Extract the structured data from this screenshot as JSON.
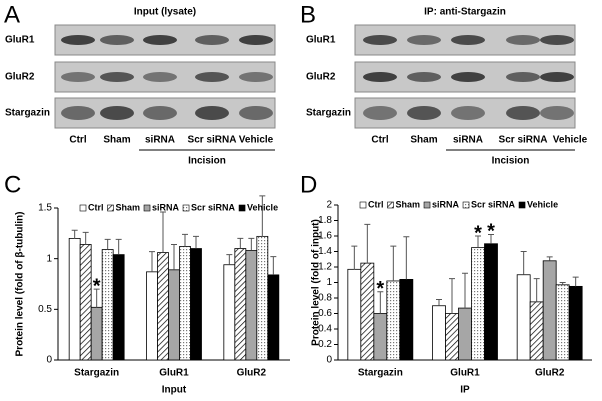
{
  "blots": [
    {
      "panel": "A",
      "title": "Input (lysate)",
      "rows": [
        "GluR1",
        "GluR2",
        "Stargazin"
      ],
      "lanes": [
        "Ctrl",
        "Sham",
        "siRNA",
        "Scr siRNA",
        "Vehicle"
      ],
      "group": "Incision"
    },
    {
      "panel": "B",
      "title": "IP: anti-Stargazin",
      "rows": [
        "GluR1",
        "GluR2",
        "Stargazin"
      ],
      "lanes": [
        "Ctrl",
        "Sham",
        "siRNA",
        "Scr siRNA",
        "Vehicle"
      ],
      "group": "Incision"
    }
  ],
  "chart_data": [
    {
      "type": "bar",
      "panel": "C",
      "xlabel": "Input",
      "ylabel": "Protein level (fold of  β-tubulin)",
      "categories": [
        "Stargazin",
        "GluR1",
        "GluR2"
      ],
      "series": [
        {
          "name": "Ctrl",
          "color": "#ffffff",
          "values": [
            1.2,
            0.87,
            0.94
          ],
          "errors": [
            0.08,
            0.2,
            0.1
          ]
        },
        {
          "name": "Sham",
          "color": "#ffffff",
          "pattern": "hatch",
          "values": [
            1.14,
            1.06,
            1.1
          ],
          "errors": [
            0.12,
            0.4,
            0.1
          ]
        },
        {
          "name": "siRNA",
          "color": "#a6a6a6",
          "values": [
            0.52,
            0.89,
            1.08
          ],
          "errors": [
            0.18,
            0.25,
            0.12
          ]
        },
        {
          "name": "Scr siRNA",
          "color": "#d9d9d9",
          "pattern": "dots",
          "values": [
            1.09,
            1.12,
            1.22
          ],
          "errors": [
            0.1,
            0.12,
            0.4
          ]
        },
        {
          "name": "Vehicle",
          "color": "#000000",
          "values": [
            1.04,
            1.1,
            0.84
          ],
          "errors": [
            0.15,
            0.12,
            0.18
          ]
        }
      ],
      "ylim": [
        0,
        1.5
      ],
      "yticks": [
        0,
        0.5,
        1,
        1.5
      ],
      "annotations": [
        "*"
      ]
    },
    {
      "type": "bar",
      "panel": "D",
      "xlabel": "IP",
      "ylabel": "Protein level (fold of input)",
      "categories": [
        "Stargazin",
        "GluR1",
        "GluR2"
      ],
      "series": [
        {
          "name": "Ctrl",
          "color": "#ffffff",
          "values": [
            1.17,
            0.7,
            1.1
          ],
          "errors": [
            0.3,
            0.08,
            0.3
          ]
        },
        {
          "name": "Sham",
          "color": "#ffffff",
          "pattern": "hatch",
          "values": [
            1.25,
            0.6,
            0.75
          ],
          "errors": [
            0.5,
            0.45,
            0.3
          ]
        },
        {
          "name": "siRNA",
          "color": "#a6a6a6",
          "values": [
            0.6,
            0.67,
            1.28
          ],
          "errors": [
            0.28,
            0.45,
            0.05
          ]
        },
        {
          "name": "Scr siRNA",
          "color": "#d9d9d9",
          "pattern": "dots",
          "values": [
            1.02,
            1.45,
            0.97
          ],
          "errors": [
            0.45,
            0.15,
            0.03
          ]
        },
        {
          "name": "Vehicle",
          "color": "#000000",
          "values": [
            1.04,
            1.5,
            0.95
          ],
          "errors": [
            0.55,
            0.12,
            0.12
          ]
        }
      ],
      "ylim": [
        0,
        2
      ],
      "yticks": [
        0,
        0.2,
        0.4,
        0.6,
        0.8,
        1,
        1.2,
        1.4,
        1.6,
        1.8,
        2
      ],
      "annotations": [
        "*",
        "*",
        "*"
      ]
    }
  ]
}
